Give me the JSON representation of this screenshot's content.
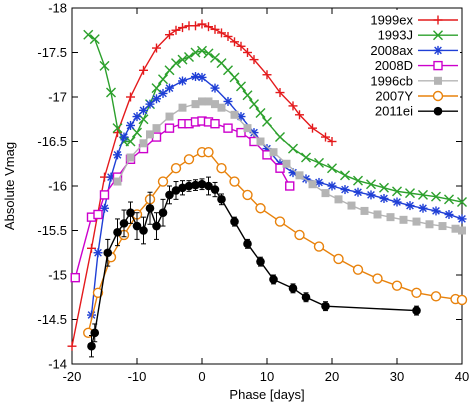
{
  "chart_data": {
    "type": "line",
    "title": "",
    "xlabel": "Phase [days]",
    "ylabel": "Absolute Vmag",
    "xlim": [
      -20,
      40
    ],
    "ylim": [
      -14,
      -18
    ],
    "y_inverted": true,
    "grid": false,
    "legend_position": "top-right",
    "xticks": [
      -20,
      -10,
      0,
      10,
      20,
      30,
      40
    ],
    "xtick_labels": [
      "-20",
      "-10",
      "0",
      "10",
      "20",
      "30",
      "40"
    ],
    "yticks": [
      -18,
      -17.5,
      -17,
      -16.5,
      -16,
      -15.5,
      -15,
      -14.5,
      -14
    ],
    "ytick_labels": [
      "-18",
      "-17.5",
      "-17",
      "-16.5",
      "-16",
      "-15.5",
      "-15",
      "-14.5",
      "-14"
    ],
    "series": [
      {
        "name": "1999ex",
        "color": "#e41a1c",
        "marker": "plus",
        "x": [
          -20,
          -17,
          -15,
          -13,
          -11,
          -9,
          -7,
          -5,
          -4,
          -3,
          -2,
          -1,
          0,
          1,
          2,
          3,
          4,
          5,
          6,
          7,
          8,
          10,
          12,
          14,
          15,
          17,
          19,
          20
        ],
        "y": [
          -14.2,
          -15.3,
          -16.1,
          -16.6,
          -17.0,
          -17.3,
          -17.55,
          -17.7,
          -17.75,
          -17.78,
          -17.8,
          -17.8,
          -17.82,
          -17.79,
          -17.76,
          -17.72,
          -17.68,
          -17.62,
          -17.57,
          -17.5,
          -17.42,
          -17.25,
          -17.05,
          -16.9,
          -16.8,
          -16.65,
          -16.55,
          -16.5
        ]
      },
      {
        "name": "1993J",
        "color": "#2ca02c",
        "marker": "x",
        "x": [
          -17.5,
          -16.5,
          -15,
          -14,
          -13,
          -12,
          -11,
          -10,
          -9,
          -8,
          -7,
          -6,
          -5,
          -4,
          -3,
          -2,
          -1,
          0,
          1,
          2,
          3,
          4,
          5,
          6,
          7,
          8,
          9,
          10,
          12,
          14,
          16,
          18,
          20,
          22,
          24,
          26,
          28,
          30,
          32,
          34,
          36,
          38,
          40
        ],
        "y": [
          -17.7,
          -17.65,
          -17.35,
          -17.05,
          -16.65,
          -16.5,
          -16.5,
          -16.6,
          -16.75,
          -16.92,
          -17.1,
          -17.2,
          -17.3,
          -17.38,
          -17.42,
          -17.45,
          -17.5,
          -17.52,
          -17.49,
          -17.44,
          -17.38,
          -17.3,
          -17.22,
          -17.12,
          -17.02,
          -16.92,
          -16.82,
          -16.72,
          -16.55,
          -16.42,
          -16.32,
          -16.26,
          -16.2,
          -16.12,
          -16.06,
          -16.02,
          -15.98,
          -15.94,
          -15.92,
          -15.9,
          -15.88,
          -15.85,
          -15.82
        ]
      },
      {
        "name": "2008ax",
        "color": "#1f3fd6",
        "marker": "star",
        "x": [
          -17,
          -16,
          -15,
          -14,
          -13,
          -12,
          -11,
          -10,
          -9,
          -8,
          -7,
          -6,
          -5,
          -3,
          -1,
          0,
          2,
          4,
          6,
          8,
          10,
          12,
          14,
          16,
          18,
          20,
          22,
          24,
          26,
          28,
          30,
          32,
          34,
          36,
          38,
          40
        ],
        "y": [
          -14.55,
          -15.25,
          -15.75,
          -16.1,
          -16.35,
          -16.55,
          -16.68,
          -16.78,
          -16.85,
          -16.92,
          -16.98,
          -17.04,
          -17.1,
          -17.18,
          -17.23,
          -17.22,
          -17.1,
          -16.95,
          -16.78,
          -16.6,
          -16.42,
          -16.25,
          -16.15,
          -16.08,
          -16.04,
          -16.0,
          -15.96,
          -15.93,
          -15.9,
          -15.86,
          -15.82,
          -15.78,
          -15.75,
          -15.72,
          -15.68,
          -15.63
        ]
      },
      {
        "name": "2008D",
        "color": "#cc00cc",
        "marker": "square",
        "x": [
          -19.5,
          -17,
          -16,
          -15,
          -13,
          -11,
          -9,
          -7,
          -5,
          -3,
          -2,
          -1,
          0,
          1,
          2,
          4,
          6,
          8,
          10,
          12,
          13.5
        ],
        "y": [
          -14.97,
          -15.65,
          -15.68,
          -15.9,
          -16.1,
          -16.3,
          -16.42,
          -16.55,
          -16.65,
          -16.7,
          -16.7,
          -16.72,
          -16.73,
          -16.72,
          -16.7,
          -16.65,
          -16.6,
          -16.5,
          -16.35,
          -16.2,
          -16.0
        ]
      },
      {
        "name": "1996cb",
        "color": "#b4b4b4",
        "marker": "filled-square",
        "x": [
          -13,
          -11,
          -9,
          -8,
          -7,
          -5,
          -3,
          -1,
          0,
          1,
          2,
          3,
          5,
          7,
          9,
          11,
          13,
          15,
          17,
          19,
          21,
          23,
          25,
          27,
          29,
          31,
          33,
          35,
          37,
          39,
          40
        ],
        "y": [
          -16.05,
          -16.32,
          -16.48,
          -16.58,
          -16.65,
          -16.78,
          -16.88,
          -16.92,
          -16.95,
          -16.95,
          -16.92,
          -16.88,
          -16.8,
          -16.65,
          -16.5,
          -16.38,
          -16.25,
          -16.12,
          -16.02,
          -15.92,
          -15.85,
          -15.78,
          -15.72,
          -15.68,
          -15.65,
          -15.62,
          -15.6,
          -15.57,
          -15.55,
          -15.52,
          -15.5
        ]
      },
      {
        "name": "2007Y",
        "color": "#e8820c",
        "marker": "circle",
        "x": [
          -17.5,
          -16,
          -14,
          -12,
          -10,
          -8,
          -6,
          -4,
          -2,
          0,
          1,
          3,
          5,
          7,
          9,
          12,
          15,
          18,
          21,
          24,
          27,
          30,
          33,
          36,
          39,
          40
        ],
        "y": [
          -14.35,
          -14.8,
          -15.2,
          -15.45,
          -15.68,
          -15.85,
          -16.05,
          -16.2,
          -16.3,
          -16.38,
          -16.38,
          -16.2,
          -16.05,
          -15.9,
          -15.75,
          -15.6,
          -15.45,
          -15.32,
          -15.18,
          -15.06,
          -14.96,
          -14.88,
          -14.8,
          -14.76,
          -14.73,
          -14.72
        ]
      },
      {
        "name": "2011ei",
        "color": "#000000",
        "marker": "filled-circle",
        "x": [
          -17,
          -16.5,
          -14.5,
          -13,
          -12,
          -11,
          -10,
          -9,
          -8,
          -7,
          -6,
          -5,
          -4,
          -3,
          -2,
          -1,
          0,
          1,
          2,
          3,
          5,
          7,
          9,
          11,
          14,
          16,
          19,
          33
        ],
        "y": [
          -14.2,
          -14.35,
          -15.25,
          -15.48,
          -15.58,
          -15.7,
          -15.55,
          -15.5,
          -15.75,
          -15.55,
          -15.7,
          -15.9,
          -15.95,
          -15.98,
          -16.0,
          -16.01,
          -16.02,
          -16.0,
          -15.96,
          -15.85,
          -15.6,
          -15.35,
          -15.15,
          -14.95,
          -14.85,
          -14.75,
          -14.65,
          -14.6
        ],
        "y_err": [
          0.12,
          0.1,
          0.15,
          0.15,
          0.15,
          0.12,
          0.15,
          0.15,
          0.18,
          0.15,
          0.15,
          0.1,
          0.1,
          0.08,
          0.06,
          0.06,
          0.06,
          0.1,
          0.08,
          0.06,
          0.05,
          0.05,
          0.05,
          0.05,
          0.05,
          0.05,
          0.05,
          0.05
        ]
      }
    ]
  }
}
